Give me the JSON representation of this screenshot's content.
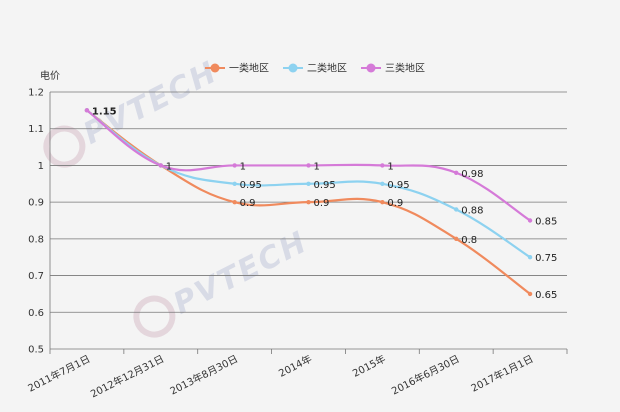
{
  "watermark": {
    "text": "PVTECH"
  },
  "chart_data": {
    "type": "line",
    "title": "",
    "ylabel": "电价",
    "xlabel": "",
    "ylim": [
      0.5,
      1.2
    ],
    "yticks": [
      "0.5",
      "0.6",
      "0.7",
      "0.8",
      "0.9",
      "1",
      "1.1",
      "1.2"
    ],
    "grid": true,
    "legend_position": "top-center",
    "categories": [
      "2011年7月1日",
      "2012年12月31日",
      "2013年8月30日",
      "2014年",
      "2015年",
      "2016年6月30日",
      "2017年1月1日"
    ],
    "series": [
      {
        "name": "一类地区",
        "color": "#f08a5d",
        "values": [
          1.15,
          1,
          0.9,
          0.9,
          0.9,
          0.8,
          0.65
        ],
        "labels": [
          "",
          "",
          "0.9",
          "0.9",
          "0.9",
          "0.8",
          "0.65"
        ]
      },
      {
        "name": "二类地区",
        "color": "#8dd2f0",
        "values": [
          1.15,
          1,
          0.95,
          0.95,
          0.95,
          0.88,
          0.75
        ],
        "labels": [
          "",
          "",
          "0.95",
          "0.95",
          "0.95",
          "0.88",
          "0.75"
        ]
      },
      {
        "name": "三类地区",
        "color": "#d57ad8",
        "values": [
          1.15,
          1,
          1,
          1,
          1,
          0.98,
          0.85
        ],
        "labels": [
          "1.15",
          "1",
          "1",
          "1",
          "1",
          "0.98",
          "0.85"
        ]
      }
    ]
  }
}
